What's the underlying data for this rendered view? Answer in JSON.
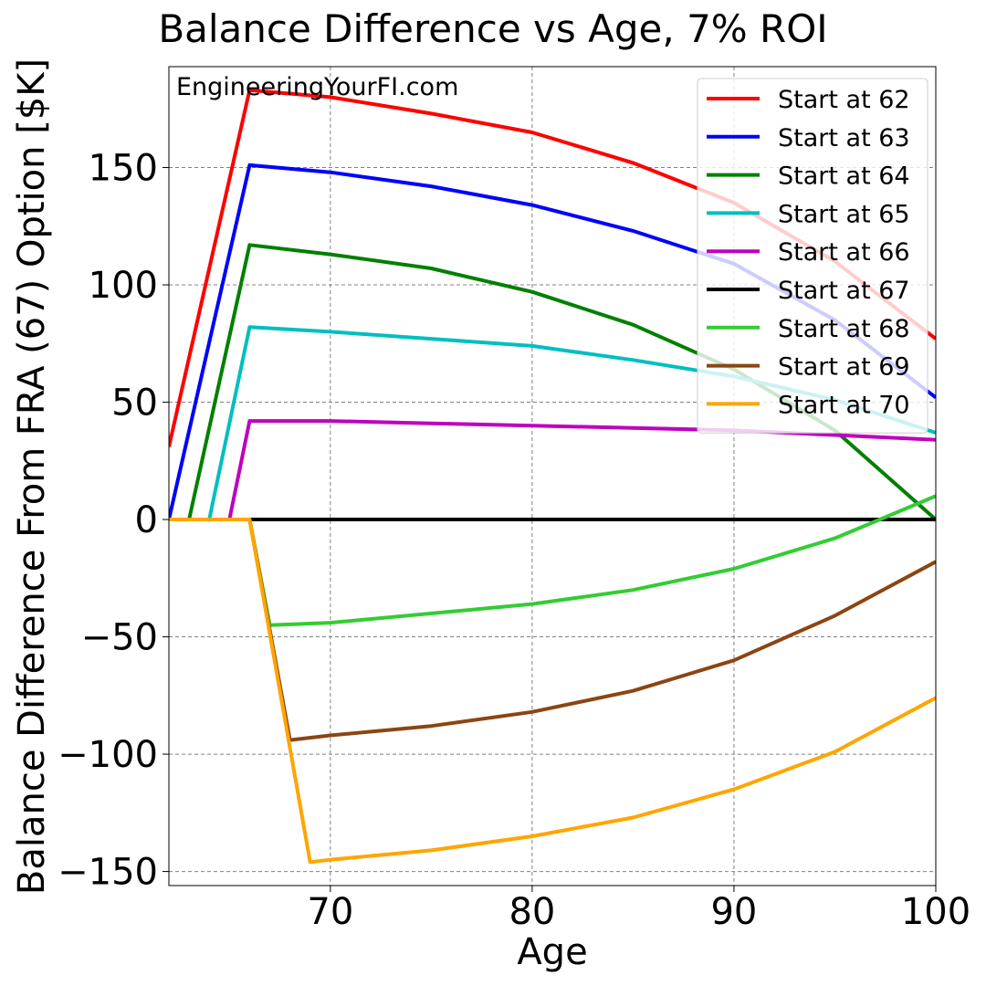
{
  "chart_data": {
    "type": "line",
    "title": "Balance Difference vs Age, 7% ROI",
    "xlabel": "Age",
    "ylabel": "Balance Difference From FRA (67) Option [$K]",
    "watermark": "EngineeringYourFI.com",
    "xlim": [
      62,
      100
    ],
    "ylim": [
      -156,
      193
    ],
    "xticks": [
      70,
      80,
      90,
      100
    ],
    "yticks": [
      -150,
      -100,
      -50,
      0,
      50,
      100,
      150
    ],
    "xtick_labels": [
      "70",
      "80",
      "90",
      "100"
    ],
    "ytick_labels": [
      "−150",
      "−100",
      "−50",
      "0",
      "50",
      "100",
      "150"
    ],
    "grid": true,
    "legend_position": "top-right",
    "series": [
      {
        "name": "Start at 62",
        "color": "#ff0000",
        "x": [
          62,
          66,
          70,
          75,
          80,
          85,
          90,
          95,
          100
        ],
        "values": [
          31,
          183,
          180,
          173,
          165,
          152,
          135,
          110,
          77
        ]
      },
      {
        "name": "Start at 63",
        "color": "#0000ff",
        "x": [
          62,
          66,
          70,
          75,
          80,
          85,
          90,
          95,
          100
        ],
        "values": [
          0,
          151,
          148,
          142,
          134,
          123,
          109,
          85,
          52
        ]
      },
      {
        "name": "Start at 64",
        "color": "#008000",
        "x": [
          62,
          63,
          66,
          70,
          75,
          80,
          85,
          90,
          95,
          100
        ],
        "values": [
          0,
          0,
          117,
          113,
          107,
          97,
          83,
          64,
          38,
          0
        ]
      },
      {
        "name": "Start at 65",
        "color": "#00bfbf",
        "x": [
          62,
          64,
          66,
          70,
          75,
          80,
          85,
          90,
          95,
          100
        ],
        "values": [
          0,
          0,
          82,
          80,
          77,
          74,
          68,
          61,
          51,
          37
        ]
      },
      {
        "name": "Start at 66",
        "color": "#bf00bf",
        "x": [
          62,
          65,
          66,
          70,
          75,
          80,
          85,
          90,
          95,
          100
        ],
        "values": [
          0,
          0,
          42,
          42,
          41,
          40,
          39,
          38,
          36,
          34
        ]
      },
      {
        "name": "Start at 67",
        "color": "#000000",
        "x": [
          62,
          100
        ],
        "values": [
          0,
          0
        ]
      },
      {
        "name": "Start at 68",
        "color": "#32cd32",
        "x": [
          62,
          66,
          67,
          70,
          75,
          80,
          85,
          90,
          95,
          100
        ],
        "values": [
          0,
          0,
          -45,
          -44,
          -40,
          -36,
          -30,
          -21,
          -8,
          10
        ]
      },
      {
        "name": "Start at 69",
        "color": "#8b4513",
        "x": [
          62,
          66,
          68,
          70,
          75,
          80,
          85,
          90,
          95,
          100
        ],
        "values": [
          0,
          0,
          -94,
          -92,
          -88,
          -82,
          -73,
          -60,
          -41,
          -18
        ]
      },
      {
        "name": "Start at 70",
        "color": "#ffa500",
        "x": [
          62,
          66,
          69,
          70,
          75,
          80,
          85,
          90,
          95,
          100
        ],
        "values": [
          0,
          0,
          -146,
          -145,
          -141,
          -135,
          -127,
          -115,
          -99,
          -76
        ]
      }
    ]
  }
}
